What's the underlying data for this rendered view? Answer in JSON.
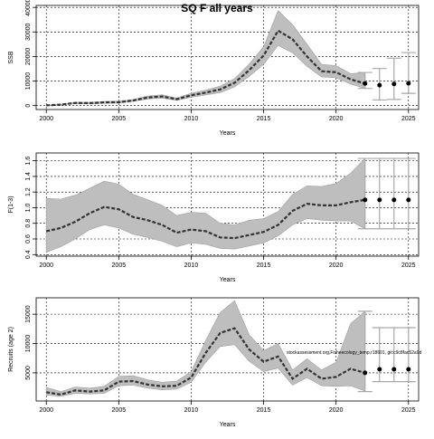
{
  "title": "SQ F all years",
  "annotation": "stockassessment.org,Fisheecology_temp,r18601, git:c9c8fac52a0d",
  "colors": {
    "band": "#bebebe",
    "band_edge": "#a0a0a0",
    "line": "#333333",
    "point": "#000000",
    "whisker": "#a8a8a8",
    "grid": "#000000"
  },
  "chart_data": [
    {
      "type": "line",
      "title": "SQ F all years",
      "xlabel": "Years",
      "ylabel": "SSB",
      "xlim": [
        1999.3,
        2025.7
      ],
      "ylim": [
        -1600,
        40800
      ],
      "xticks": [
        2000,
        2005,
        2010,
        2015,
        2020,
        2025
      ],
      "ytick_values": [
        0,
        10000,
        20000,
        30000,
        40000
      ],
      "ytick_labels": [
        "0",
        "10000",
        "20000",
        "30000",
        "40000"
      ],
      "grid": true,
      "series": [
        {
          "x": [
            2000,
            2001,
            2002,
            2003,
            2004,
            2005,
            2006,
            2007,
            2008,
            2009,
            2010,
            2011,
            2012,
            2013,
            2014,
            2015,
            2016,
            2017,
            2018,
            2019,
            2020,
            2021,
            2022
          ],
          "values": [
            100,
            400,
            1100,
            1000,
            1300,
            1400,
            2100,
            3300,
            3700,
            2600,
            4200,
            5300,
            6600,
            9300,
            14400,
            20400,
            30500,
            27000,
            20000,
            14000,
            13600,
            10700,
            9000
          ],
          "lower": [
            50,
            250,
            800,
            700,
            900,
            1000,
            1700,
            2700,
            3000,
            2100,
            3400,
            4300,
            5300,
            7600,
            11900,
            16800,
            24500,
            21500,
            16000,
            11700,
            11300,
            8800,
            7000
          ],
          "upper": [
            150,
            550,
            1400,
            1300,
            1700,
            1800,
            2500,
            3900,
            4400,
            3100,
            5000,
            6300,
            7900,
            11000,
            16900,
            24000,
            38700,
            33000,
            25000,
            16800,
            16300,
            13000,
            13500
          ]
        }
      ],
      "forecast": {
        "x": [
          2022,
          2023,
          2024,
          2025
        ],
        "median": [
          9000,
          8300,
          8800,
          9100
        ],
        "low": [
          7000,
          2300,
          2500,
          5000
        ],
        "high": [
          13500,
          15100,
          19300,
          21600
        ]
      }
    },
    {
      "type": "line",
      "title": "",
      "xlabel": "Years",
      "ylabel": "F(1-3)",
      "xlim": [
        1999.3,
        2025.7
      ],
      "ylim": [
        0.38,
        1.7
      ],
      "xticks": [
        2000,
        2005,
        2010,
        2015,
        2020,
        2025
      ],
      "ytick_values": [
        0.4,
        0.6,
        0.8,
        1.0,
        1.2,
        1.4,
        1.6
      ],
      "ytick_labels": [
        "0.4",
        "0.6",
        "0.8",
        "1.0",
        "1.2",
        "1.4",
        "1.6"
      ],
      "grid": true,
      "series": [
        {
          "x": [
            2000,
            2001,
            2002,
            2003,
            2004,
            2005,
            2006,
            2007,
            2008,
            2009,
            2010,
            2011,
            2012,
            2013,
            2014,
            2015,
            2016,
            2017,
            2018,
            2019,
            2020,
            2021,
            2022
          ],
          "values": [
            0.7,
            0.74,
            0.82,
            0.93,
            1.01,
            0.98,
            0.88,
            0.84,
            0.78,
            0.68,
            0.72,
            0.7,
            0.62,
            0.61,
            0.65,
            0.69,
            0.78,
            0.96,
            1.05,
            1.03,
            1.03,
            1.07,
            1.1
          ],
          "lower": [
            0.43,
            0.5,
            0.6,
            0.72,
            0.78,
            0.74,
            0.66,
            0.62,
            0.57,
            0.5,
            0.55,
            0.53,
            0.48,
            0.47,
            0.51,
            0.55,
            0.64,
            0.78,
            0.86,
            0.84,
            0.83,
            0.83,
            0.73
          ],
          "upper": [
            1.12,
            1.11,
            1.16,
            1.25,
            1.34,
            1.3,
            1.17,
            1.1,
            1.03,
            0.9,
            0.94,
            0.93,
            0.8,
            0.78,
            0.84,
            0.86,
            0.95,
            1.17,
            1.28,
            1.27,
            1.31,
            1.44,
            1.63
          ]
        }
      ],
      "forecast": {
        "x": [
          2022,
          2023,
          2024,
          2025
        ],
        "median": [
          1.1,
          1.1,
          1.1,
          1.1
        ],
        "low": [
          0.73,
          0.73,
          0.73,
          0.73
        ],
        "high": [
          1.63,
          1.63,
          1.63,
          1.63
        ]
      }
    },
    {
      "type": "line",
      "title": "",
      "xlabel": "Years",
      "ylabel": "Recruits (age 2)",
      "xlim": [
        1999.3,
        2025.7
      ],
      "ylim": [
        200,
        17800
      ],
      "xticks": [
        2000,
        2005,
        2010,
        2015,
        2020,
        2025
      ],
      "ytick_values": [
        5000,
        10000,
        15000
      ],
      "ytick_labels": [
        "5000",
        "10000",
        "15000"
      ],
      "grid": true,
      "series": [
        {
          "x": [
            2000,
            2001,
            2002,
            2003,
            2004,
            2005,
            2006,
            2007,
            2008,
            2009,
            2010,
            2011,
            2012,
            2013,
            2014,
            2015,
            2016,
            2017,
            2018,
            2019,
            2020,
            2021,
            2022
          ],
          "values": [
            1700,
            1300,
            2000,
            1800,
            2000,
            3500,
            3600,
            3000,
            2700,
            2800,
            4200,
            8400,
            11800,
            12600,
            9000,
            6900,
            7800,
            4000,
            5700,
            4000,
            4300,
            5700,
            5000
          ],
          "lower": [
            1200,
            1000,
            1500,
            1400,
            1500,
            2800,
            2900,
            2400,
            2100,
            2200,
            3400,
            6800,
            9500,
            9800,
            7000,
            5200,
            5800,
            2900,
            4200,
            2800,
            2700,
            2800,
            1900
          ],
          "upper": [
            2500,
            1800,
            2600,
            2400,
            2700,
            4400,
            4500,
            3800,
            3400,
            3600,
            5200,
            10500,
            15300,
            17300,
            11500,
            8800,
            10000,
            5500,
            7400,
            5500,
            6800,
            13400,
            15500
          ]
        }
      ],
      "forecast": {
        "x": [
          2022,
          2023,
          2024,
          2025
        ],
        "median": [
          5000,
          5600,
          5600,
          5600
        ],
        "low": [
          1800,
          3500,
          3500,
          3500
        ],
        "high": [
          15500,
          12700,
          12700,
          12700
        ]
      }
    }
  ]
}
